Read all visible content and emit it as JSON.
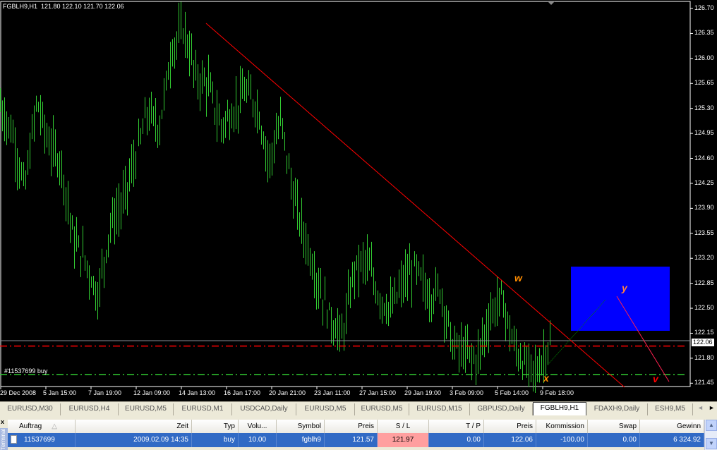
{
  "chart": {
    "title": "FGBLH9,H1  121.80 122.10 121.70 122.06",
    "symbol": "FGBLH9",
    "timeframe": "H1",
    "ohlc": {
      "open": 121.8,
      "high": 122.1,
      "low": 121.7,
      "close": 122.06
    },
    "current_price": "122.06",
    "order_label": "#11537699 buy",
    "bar_color": "#32cd32",
    "background": "#000000",
    "price_ticks": [
      "126.70",
      "126.35",
      "126.00",
      "125.65",
      "125.30",
      "124.95",
      "124.60",
      "124.25",
      "123.90",
      "123.55",
      "123.20",
      "122.85",
      "122.50",
      "122.15",
      "121.80",
      "121.45"
    ],
    "time_ticks": [
      "29 Dec 2008",
      "5 Jan 15:00",
      "7 Jan 19:00",
      "12 Jan 09:00",
      "14 Jan 13:00",
      "16 Jan 17:00",
      "20 Jan 21:00",
      "23 Jan 11:00",
      "27 Jan 15:00",
      "29 Jan 19:00",
      "3 Feb 09:00",
      "5 Feb 14:00",
      "9 Feb 18:00"
    ],
    "stop_loss": 121.97,
    "open_price": 121.57,
    "approx_closes": [
      125.34,
      124.94,
      124.15,
      125.4,
      124.8,
      124.55,
      123.46,
      123.16,
      122.67,
      123.66,
      123.95,
      124.55,
      125.24,
      125.04,
      126.13,
      126.42,
      125.73,
      125.63,
      125.04,
      125.24,
      125.53,
      125.34,
      124.55,
      125.14,
      124.05,
      123.46,
      122.86,
      122.37,
      122.08,
      123.06,
      123.16,
      122.67,
      122.47,
      122.86,
      123.06,
      122.67,
      122.77,
      121.98,
      121.88,
      121.78,
      122.37,
      122.67,
      121.98,
      121.68,
      121.63,
      122.06
    ],
    "wave_labels": [
      {
        "text": "w",
        "color": "#ff8c00"
      },
      {
        "text": "x",
        "color": "#ff8c00"
      },
      {
        "text": "y",
        "color": "#ff8040"
      },
      {
        "text": "v",
        "color": "#ff0000"
      }
    ],
    "target_box_color": "#0000ff"
  },
  "tabs": [
    {
      "label": "EURUSD,M30"
    },
    {
      "label": "EURUSD,H4"
    },
    {
      "label": "EURUSD,M5"
    },
    {
      "label": "EURUSD,M1"
    },
    {
      "label": "USDCAD,Daily"
    },
    {
      "label": "EURUSD,M5"
    },
    {
      "label": "EURUSD,M5"
    },
    {
      "label": "EURUSD,M15"
    },
    {
      "label": "GBPUSD,Daily"
    },
    {
      "label": "FGBLH9,H1",
      "active": true
    },
    {
      "label": "FDAXH9,Daily"
    },
    {
      "label": "ESH9,M5"
    }
  ],
  "terminal": {
    "side_label": "Terminal",
    "close": "x",
    "headers": [
      "Auftrag",
      "Zeit",
      "Typ",
      "Volu...",
      "Symbol",
      "Preis",
      "S / L",
      "T / P",
      "Preis",
      "Kommission",
      "Swap",
      "Gewinn"
    ],
    "sort_icon": "△",
    "rows": [
      [
        "11537699",
        "2009.02.09 14:35",
        "buy",
        "10.00",
        "fgblh9",
        "121.57",
        "121.97",
        "0.00",
        "122.06",
        "-100.00",
        "0.00",
        "6 324.92"
      ]
    ],
    "sl_highlight": "#ff9f9f",
    "row_selected_color": "#316ac5"
  }
}
